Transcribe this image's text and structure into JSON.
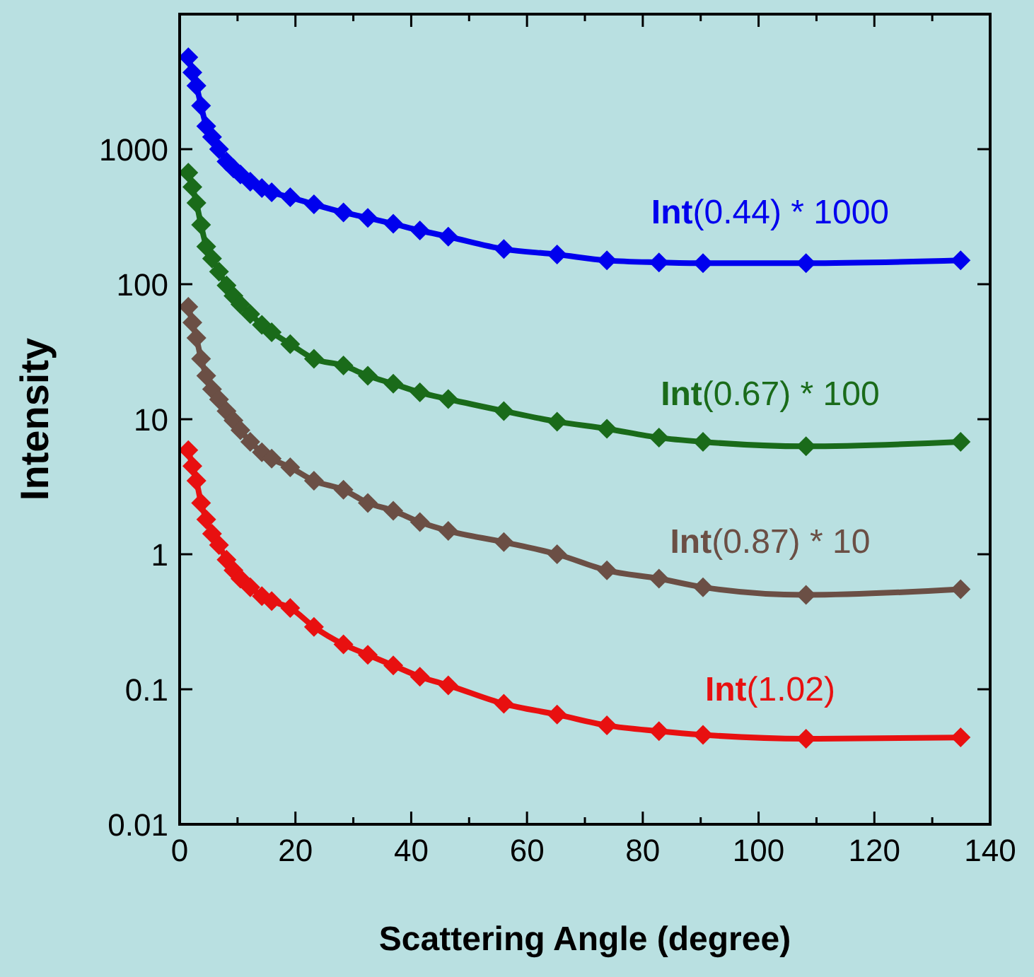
{
  "chart_data": {
    "type": "line",
    "xlabel": "Scattering Angle (degree)",
    "ylabel": "Intensity",
    "log": "y",
    "marker": "diamond",
    "line_style": "solid",
    "grid": false,
    "legend": false,
    "x": [
      1.5,
      2.2,
      2.9,
      3.7,
      4.6,
      5.6,
      6.8,
      8.1,
      9.3,
      10.5,
      12.2,
      14.2,
      15.9,
      19.1,
      23.2,
      28.3,
      32.5,
      36.9,
      41.5,
      46.4,
      56,
      65.2,
      73.8,
      82.8,
      90.4,
      108.2,
      134.9
    ],
    "xlim": [
      0,
      140
    ],
    "xticks": [
      0,
      {
        "value": 10,
        "label": null
      },
      20,
      {
        "value": 30,
        "label": null
      },
      40,
      {
        "value": 50,
        "label": null
      },
      60,
      {
        "value": 70,
        "label": null
      },
      80,
      {
        "value": 90,
        "label": null
      },
      100,
      {
        "value": 110,
        "label": null
      },
      120,
      {
        "value": 130,
        "label": null
      },
      140
    ],
    "ylim": [
      0.01,
      10000
    ],
    "yticks": [
      0.01,
      0.1,
      1,
      10,
      100,
      1000,
      {
        "value": 10000,
        "label": null
      }
    ],
    "series": [
      {
        "name": "Int(0.44) * 1000",
        "color": "#0000ee",
        "values": [
          4800,
          3700,
          2950,
          2100,
          1480,
          1230,
          1000,
          810,
          720,
          650,
          575,
          515,
          480,
          440,
          390,
          340,
          310,
          280,
          250,
          225,
          182,
          166,
          150,
          145,
          143,
          143,
          150
        ]
      },
      {
        "name": "Int(0.67) * 100",
        "color": "#1a6b1a",
        "values": [
          670,
          525,
          400,
          275,
          190,
          155,
          124,
          98,
          82,
          71,
          60,
          50,
          44,
          36,
          28,
          25,
          21,
          18.3,
          15.8,
          14.1,
          11.5,
          9.6,
          8.5,
          7.3,
          6.8,
          6.3,
          6.8
        ]
      },
      {
        "name": "Int(0.87) * 10",
        "color": "#6b4f45",
        "values": [
          68,
          52,
          40,
          28,
          21,
          16.7,
          14,
          11.5,
          9.8,
          8.3,
          6.8,
          5.7,
          5.1,
          4.4,
          3.5,
          3,
          2.4,
          2.1,
          1.73,
          1.49,
          1.23,
          1,
          0.76,
          0.66,
          0.57,
          0.5,
          0.55
        ]
      },
      {
        "name": "Int(1.02)",
        "color": "#e81010",
        "values": [
          5.9,
          4.5,
          3.5,
          2.4,
          1.81,
          1.42,
          1.17,
          0.91,
          0.76,
          0.66,
          0.57,
          0.49,
          0.45,
          0.4,
          0.29,
          0.215,
          0.18,
          0.15,
          0.124,
          0.107,
          0.078,
          0.065,
          0.054,
          0.049,
          0.046,
          0.043,
          0.044
        ]
      }
    ]
  }
}
